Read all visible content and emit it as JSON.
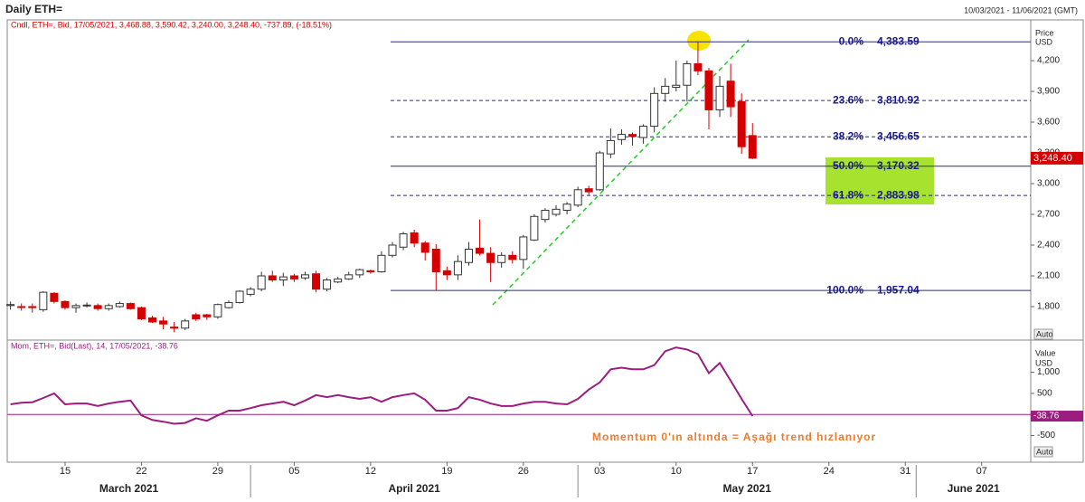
{
  "header": {
    "title": "Daily ETH=",
    "date_range": "10/03/2021 - 11/06/2021 (GMT)"
  },
  "chart_data": [
    {
      "type": "candlestick",
      "legend": "Cndl, ETH=, Bid, 17/05/2021, 3,468.88, 3,590.42, 3,240.00, 3,248.40, -737.89, (-18.51%)",
      "y_axis_label": [
        "Price",
        "USD"
      ],
      "scale_mode": "Auto",
      "x": [
        0,
        1,
        2,
        3,
        4,
        5,
        6,
        7,
        8,
        9,
        10,
        11,
        12,
        13,
        14,
        15,
        16,
        17,
        18,
        19,
        20,
        21,
        22,
        23,
        24,
        25,
        26,
        27,
        28,
        29,
        30,
        31,
        32,
        33,
        34,
        35,
        36,
        37,
        38,
        39,
        40,
        41,
        42,
        43,
        44,
        45,
        46,
        47,
        48,
        49,
        50,
        51,
        52,
        53,
        54,
        55,
        56,
        57,
        58,
        59,
        60,
        61,
        62,
        63,
        64,
        65,
        66,
        67,
        68
      ],
      "open": [
        1810,
        1800,
        1800,
        1770,
        1930,
        1850,
        1790,
        1810,
        1810,
        1780,
        1800,
        1830,
        1790,
        1690,
        1660,
        1600,
        1590,
        1720,
        1720,
        1700,
        1790,
        1840,
        1920,
        1970,
        2100,
        2060,
        2100,
        2080,
        2120,
        1970,
        2040,
        2070,
        2110,
        2150,
        2140,
        2300,
        2380,
        2520,
        2420,
        2360,
        2150,
        2110,
        2230,
        2370,
        2320,
        2230,
        2300,
        2260,
        2450,
        2650,
        2700,
        2740,
        2790,
        2950,
        2940,
        3290,
        3430,
        3480,
        3450,
        3560,
        3880,
        3940,
        3960,
        4170,
        4100,
        3720,
        4000,
        3800,
        3468.88
      ],
      "high": [
        1850,
        1830,
        1830,
        1950,
        1940,
        1860,
        1830,
        1840,
        1830,
        1830,
        1850,
        1840,
        1800,
        1710,
        1700,
        1650,
        1680,
        1740,
        1730,
        1830,
        1860,
        1960,
        1990,
        2140,
        2150,
        2130,
        2120,
        2140,
        2150,
        2080,
        2090,
        2140,
        2170,
        2160,
        2340,
        2430,
        2530,
        2550,
        2440,
        2410,
        2190,
        2300,
        2430,
        2650,
        2380,
        2330,
        2340,
        2500,
        2700,
        2760,
        2790,
        2820,
        2970,
        2980,
        3320,
        3540,
        3530,
        3500,
        3580,
        3940,
        4030,
        4200,
        4200,
        4380,
        4130,
        4050,
        4170,
        3880,
        3590.42
      ],
      "low": [
        1770,
        1760,
        1740,
        1750,
        1830,
        1770,
        1740,
        1790,
        1760,
        1760,
        1790,
        1770,
        1670,
        1640,
        1580,
        1550,
        1570,
        1660,
        1670,
        1680,
        1780,
        1830,
        1900,
        1950,
        2040,
        2000,
        2040,
        2060,
        1940,
        1950,
        2030,
        2060,
        2080,
        2120,
        2130,
        2280,
        2350,
        2380,
        2250,
        1960,
        2060,
        2060,
        2200,
        2300,
        2040,
        2180,
        2220,
        2170,
        2440,
        2620,
        2680,
        2700,
        2770,
        2890,
        2930,
        3250,
        3380,
        3370,
        3390,
        3500,
        3800,
        3900,
        3800,
        4060,
        3530,
        3650,
        3650,
        3290,
        3240
      ],
      "close": [
        1820,
        1795,
        1790,
        1940,
        1850,
        1790,
        1810,
        1815,
        1780,
        1810,
        1830,
        1780,
        1680,
        1650,
        1630,
        1590,
        1660,
        1680,
        1700,
        1820,
        1840,
        1950,
        1970,
        2100,
        2060,
        2090,
        2070,
        2110,
        1970,
        2060,
        2070,
        2110,
        2160,
        2140,
        2300,
        2400,
        2510,
        2420,
        2330,
        2140,
        2110,
        2240,
        2360,
        2320,
        2230,
        2300,
        2260,
        2480,
        2680,
        2740,
        2750,
        2800,
        2940,
        2920,
        3300,
        3420,
        3480,
        3460,
        3560,
        3880,
        3950,
        3960,
        4170,
        4100,
        3720,
        3950,
        3750,
        3360,
        3248.4
      ],
      "up_color": "#ffffff",
      "down_color": "#d40000",
      "last_value": {
        "value": 3248.4,
        "label": "3,248.40"
      },
      "fib_levels": [
        {
          "percent": "0.0%",
          "value": 4383.59,
          "label": "4,383.59",
          "line_style": "solid"
        },
        {
          "percent": "23.6%",
          "value": 3810.92,
          "label": "3,810.92",
          "line_style": "dashed"
        },
        {
          "percent": "38.2%",
          "value": 3456.65,
          "label": "3,456.65",
          "line_style": "dashed"
        },
        {
          "percent": "50.0%",
          "value": 3170.32,
          "label": "3,170.32",
          "line_style": "solid"
        },
        {
          "percent": "61.8%",
          "value": 2883.98,
          "label": "2,883.98",
          "line_style": "dashed"
        },
        {
          "percent": "100.0%",
          "value": 1957.04,
          "label": "1,957.04",
          "line_style": "solid"
        }
      ],
      "xlim": [
        -0.3,
        93.5
      ],
      "xticks": [
        {
          "value": 5,
          "label": "15"
        },
        {
          "value": 12,
          "label": "22"
        },
        {
          "value": 19,
          "label": "29"
        },
        {
          "value": 26,
          "label": "05"
        },
        {
          "value": 33,
          "label": "12"
        },
        {
          "value": 40,
          "label": "19"
        },
        {
          "value": 47,
          "label": "26"
        },
        {
          "value": 54,
          "label": "03"
        },
        {
          "value": 61,
          "label": "10"
        },
        {
          "value": 68,
          "label": "17"
        },
        {
          "value": 75,
          "label": "24"
        },
        {
          "value": 82,
          "label": "31"
        },
        {
          "value": 89,
          "label": "07"
        }
      ],
      "month_labels": [
        "March 2021",
        "April 2021",
        "May 2021",
        "June 2021"
      ],
      "ylim": [
        1482,
        4580
      ],
      "yticks": [
        {
          "value": 1800,
          "label": "1,800"
        },
        {
          "value": 2100,
          "label": "2,100"
        },
        {
          "value": 2400,
          "label": "2,400"
        },
        {
          "value": 2700,
          "label": "2,700"
        },
        {
          "value": 3000,
          "label": "3,000"
        },
        {
          "value": 3300,
          "label": "3,300"
        },
        {
          "value": 3600,
          "label": "3,600"
        },
        {
          "value": 3900,
          "label": "3,900"
        },
        {
          "value": 4200,
          "label": "4,200"
        }
      ]
    },
    {
      "type": "line",
      "legend": "Mom, ETH=, Bid(Last), 14, 17/05/2021, -38.76",
      "y_axis_label": [
        "Value",
        "USD"
      ],
      "scale_mode": "Auto",
      "annotation": "Momentum 0'ın altında = Aşağı trend hızlanıyor",
      "x": [
        0,
        1,
        2,
        3,
        4,
        5,
        6,
        7,
        8,
        9,
        10,
        11,
        12,
        13,
        14,
        15,
        16,
        17,
        18,
        19,
        20,
        21,
        22,
        23,
        24,
        25,
        26,
        27,
        28,
        29,
        30,
        31,
        32,
        33,
        34,
        35,
        36,
        37,
        38,
        39,
        40,
        41,
        42,
        43,
        44,
        45,
        46,
        47,
        48,
        49,
        50,
        51,
        52,
        53,
        54,
        55,
        56,
        57,
        58,
        59,
        60,
        61,
        62,
        63,
        64,
        65,
        66,
        67,
        68
      ],
      "values": [
        240,
        280,
        290,
        390,
        500,
        240,
        260,
        260,
        200,
        260,
        300,
        330,
        -20,
        -130,
        -170,
        -220,
        -200,
        -90,
        -150,
        -20,
        90,
        90,
        150,
        220,
        260,
        300,
        220,
        330,
        460,
        410,
        460,
        410,
        370,
        410,
        300,
        410,
        460,
        500,
        350,
        90,
        90,
        150,
        410,
        350,
        260,
        200,
        200,
        260,
        300,
        300,
        260,
        240,
        370,
        590,
        760,
        1070,
        1110,
        1070,
        1070,
        1170,
        1500,
        1590,
        1540,
        1430,
        980,
        1220,
        800,
        370,
        -38.76
      ],
      "color": "#9b1d7f",
      "zero_line": 0,
      "last_value": -38.76,
      "ylim": [
        -1110,
        1720
      ],
      "yticks": [
        -500,
        500,
        {
          "value": 1000,
          "label": "1,000"
        }
      ]
    }
  ]
}
